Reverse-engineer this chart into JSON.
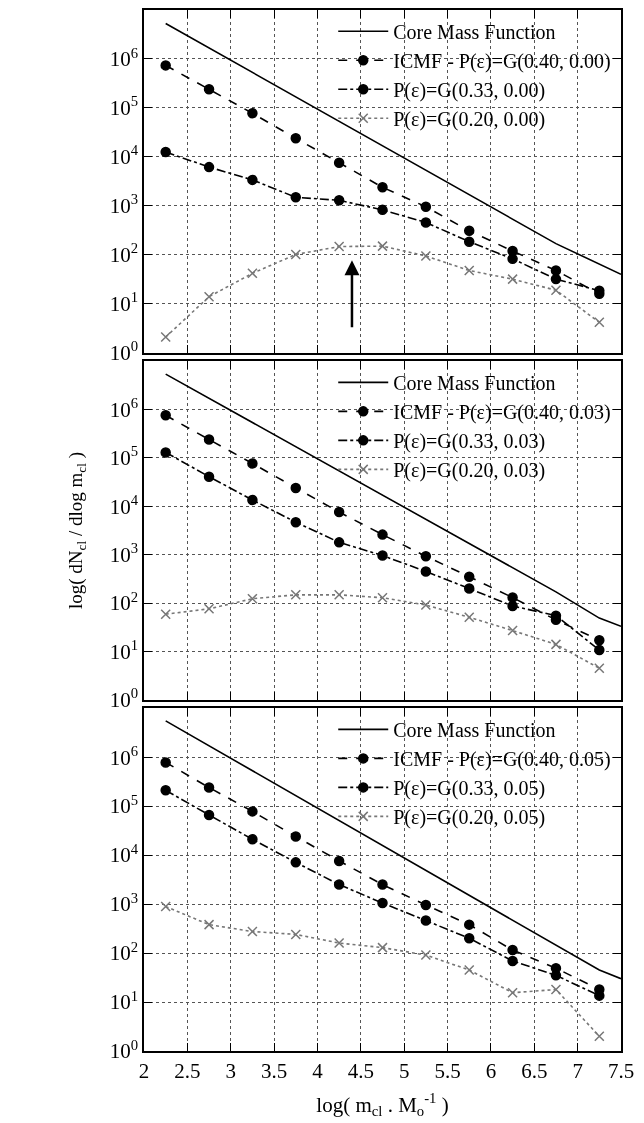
{
  "chart_data": [
    {
      "type": "line",
      "x": [
        2.25,
        2.75,
        3.25,
        3.75,
        4.25,
        4.75,
        5.25,
        5.75,
        6.25,
        6.75,
        7.25
      ],
      "log": "y",
      "grid": true,
      "legend": "top right",
      "tick_labels": "y",
      "xlim": [
        2,
        7.5
      ],
      "xticks": [
        2,
        2.5,
        3,
        3.5,
        4,
        4.5,
        5,
        5.5,
        6,
        6.5,
        7,
        7.5
      ],
      "ylim": [
        1,
        10000000
      ],
      "yticks": [
        {
          "value": 1,
          "label": "10$^{0}$"
        },
        {
          "value": 10,
          "label": "10$^{1}$"
        },
        {
          "value": 100,
          "label": "10$^{2}$"
        },
        {
          "value": 1000,
          "label": "10$^{3}$"
        },
        {
          "value": 10000,
          "label": "10$^{4}$"
        },
        {
          "value": 100000,
          "label": "10$^{5}$"
        },
        {
          "value": 1000000,
          "label": "10$^{6}$"
        }
      ],
      "series": [
        {
          "name": "Core Mass Function",
          "color": "#000000",
          "x": [
            2.25,
            6.75,
            7.5
          ],
          "values": [
            5300000,
            170,
            40
          ],
          "marker": "none",
          "line_style": "solid"
        },
        {
          "name": "ICMF - P(ε)=G(0.40, 0.00)",
          "color": "#000000",
          "values": [
            740000,
            240000,
            78000,
            24000,
            7600,
            2400,
            960,
            310,
            120,
            48,
            16
          ],
          "marker": "circle",
          "line_style": "dashed"
        },
        {
          "name": "P(ε)=G(0.33, 0.00)",
          "color": "#000000",
          "values": [
            12600,
            6200,
            3400,
            1500,
            1300,
            830,
            460,
            186,
            83,
            32,
            18.6
          ],
          "marker": "circle",
          "line_style": "dashdot"
        },
        {
          "name": "P(ε)=G(0.20, 0.00)",
          "color": "#777777",
          "values": [
            2.1,
            14,
            42,
            102,
            148,
            151,
            95,
            48,
            32,
            19,
            4.2
          ],
          "marker": "cross",
          "line_style": "dotted"
        }
      ]
    },
    {
      "type": "line",
      "x": [
        2.25,
        2.75,
        3.25,
        3.75,
        4.25,
        4.75,
        5.25,
        5.75,
        6.25,
        6.75,
        7.25
      ],
      "log": "y",
      "grid": true,
      "legend": "top right",
      "tick_labels": "y",
      "ylabel": "log( dN$_{cl}$ / dlog m$_{cl}$ )",
      "xlim": [
        2,
        7.5
      ],
      "xticks": [
        2,
        2.5,
        3,
        3.5,
        4,
        4.5,
        5,
        5.5,
        6,
        6.5,
        7,
        7.5
      ],
      "ylim": [
        1,
        10000000
      ],
      "yticks": [
        {
          "value": 1,
          "label": "10$^{0}$"
        },
        {
          "value": 10,
          "label": "10$^{1}$"
        },
        {
          "value": 100,
          "label": "10$^{2}$"
        },
        {
          "value": 1000,
          "label": "10$^{3}$"
        },
        {
          "value": 10000,
          "label": "10$^{4}$"
        },
        {
          "value": 100000,
          "label": "10$^{5}$"
        },
        {
          "value": 1000000,
          "label": "10$^{6}$"
        }
      ],
      "series": [
        {
          "name": "Core Mass Function",
          "color": "#000000",
          "x": [
            2.25,
            6.75,
            7.25,
            7.5
          ],
          "values": [
            5400000,
            170,
            49,
            33
          ],
          "marker": "none",
          "line_style": "solid"
        },
        {
          "name": "ICMF - P(ε)=G(0.40, 0.03)",
          "color": "#000000",
          "values": [
            760000,
            240000,
            77000,
            24000,
            7600,
            2600,
            930,
            350,
            130,
            45,
            17
          ],
          "marker": "circle",
          "line_style": "dashed"
        },
        {
          "name": "P(ε)=G(0.33, 0.03)",
          "color": "#000000",
          "values": [
            130000,
            41000,
            13500,
            4700,
            1800,
            960,
            450,
            200,
            87,
            55,
            10.7
          ],
          "marker": "circle",
          "line_style": "dashdot"
        },
        {
          "name": "P(ε)=G(0.20, 0.03)",
          "color": "#777777",
          "values": [
            59,
            76,
            123,
            148,
            148,
            129,
            91,
            51,
            27,
            14,
            4.5
          ],
          "marker": "cross",
          "line_style": "dotted"
        }
      ]
    },
    {
      "type": "line",
      "x": [
        2.25,
        2.75,
        3.25,
        3.75,
        4.25,
        4.75,
        5.25,
        5.75,
        6.25,
        6.75,
        7.25
      ],
      "log": "y",
      "grid": true,
      "legend": "top right",
      "xlabel": "log( m$_{cl}$ . M$_{o}$$^{-1}$ )",
      "xlim": [
        2,
        7.5
      ],
      "xticks": [
        2,
        2.5,
        3,
        3.5,
        4,
        4.5,
        5,
        5.5,
        6,
        6.5,
        7,
        7.5
      ],
      "ylim": [
        1,
        10000000
      ],
      "yticks": [
        {
          "value": 1,
          "label": "10$^{0}$"
        },
        {
          "value": 10,
          "label": "10$^{1}$"
        },
        {
          "value": 100,
          "label": "10$^{2}$"
        },
        {
          "value": 1000,
          "label": "10$^{3}$"
        },
        {
          "value": 10000,
          "label": "10$^{4}$"
        },
        {
          "value": 100000,
          "label": "10$^{5}$"
        },
        {
          "value": 1000000,
          "label": "10$^{6}$"
        }
      ],
      "series": [
        {
          "name": "Core Mass Function",
          "color": "#000000",
          "x": [
            2.25,
            7.25,
            7.5
          ],
          "values": [
            5500000,
            45,
            30
          ],
          "marker": "none",
          "line_style": "solid"
        },
        {
          "name": "ICMF - P(ε)=G(0.40, 0.05)",
          "color": "#000000",
          "values": [
            780000,
            240000,
            78000,
            24000,
            7600,
            2500,
            960,
            380,
            115,
            49,
            18
          ],
          "marker": "circle",
          "line_style": "dashed"
        },
        {
          "name": "P(ε)=G(0.33, 0.05)",
          "color": "#000000",
          "values": [
            210000,
            66000,
            21000,
            7100,
            2500,
            1050,
            460,
            200,
            69,
            35,
            13.5
          ],
          "marker": "circle",
          "line_style": "dashdot"
        },
        {
          "name": "P(ε)=G(0.20, 0.05)",
          "color": "#777777",
          "values": [
            890,
            380,
            275,
            240,
            160,
            129,
            91,
            45,
            15.5,
            18,
            2
          ],
          "marker": "cross",
          "line_style": "dotted"
        }
      ]
    }
  ]
}
